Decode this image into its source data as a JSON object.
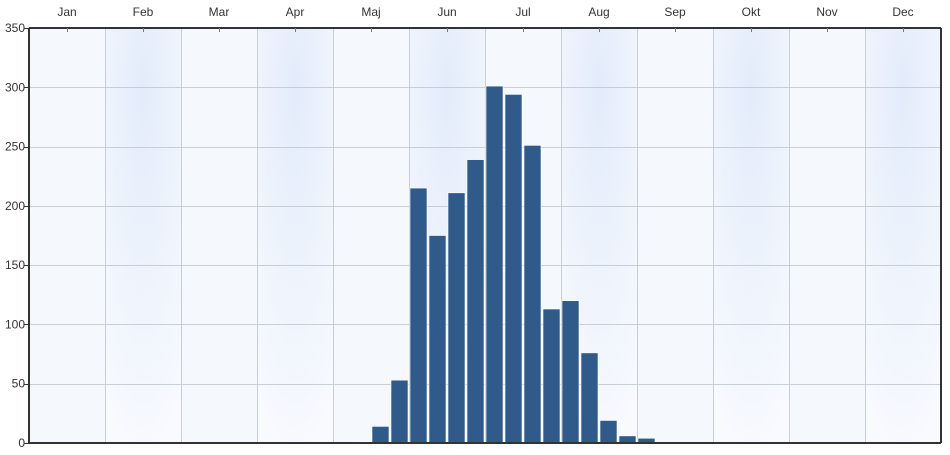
{
  "chart_data": {
    "type": "bar",
    "title": "",
    "xlabel": "",
    "ylabel": "",
    "months": [
      "Jan",
      "Feb",
      "Mar",
      "Apr",
      "Maj",
      "Jun",
      "Jul",
      "Aug",
      "Sep",
      "Okt",
      "Nov",
      "Dec"
    ],
    "ylim": [
      0,
      350
    ],
    "yticks": [
      0,
      50,
      100,
      150,
      200,
      250,
      300,
      350
    ],
    "bins_per_month": 4,
    "values": [
      0,
      0,
      0,
      0,
      0,
      0,
      0,
      0,
      0,
      0,
      0,
      0,
      0,
      0,
      0,
      0,
      0,
      1,
      14,
      53,
      215,
      175,
      211,
      239,
      301,
      294,
      251,
      113,
      120,
      76,
      19,
      6,
      4,
      0,
      0,
      0,
      0,
      0,
      0,
      0,
      0,
      0,
      0,
      0,
      0,
      0,
      0,
      0
    ],
    "grid": true,
    "legend": "none",
    "bar_color": "#2f5a8a",
    "axis_color": "#333333",
    "grid_color": "#c8ced6",
    "background_color": "#f5f8fd",
    "band_color": "#e7effc"
  }
}
